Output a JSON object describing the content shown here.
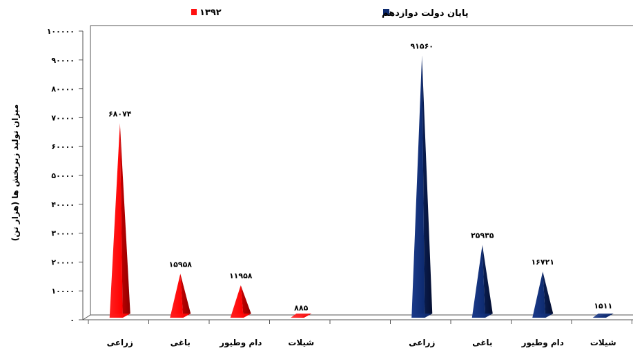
{
  "chart_data": {
    "type": "bar",
    "style": "cone",
    "ylabel": "میزان تولید زیربخش ها (هزار تن)",
    "ylim": [
      0,
      100000
    ],
    "y_ticks": [
      0,
      10000,
      20000,
      30000,
      40000,
      50000,
      60000,
      70000,
      80000,
      90000,
      100000
    ],
    "y_tick_labels": [
      "۰",
      "۱۰۰۰۰",
      "۲۰۰۰۰",
      "۳۰۰۰۰",
      "۴۰۰۰۰",
      "۵۰۰۰۰",
      "۶۰۰۰۰",
      "۷۰۰۰۰",
      "۸۰۰۰۰",
      "۹۰۰۰۰",
      "۱۰۰۰۰۰"
    ],
    "categories": [
      "زراعی",
      "باغی",
      "دام وطیور",
      "شیلات"
    ],
    "series": [
      {
        "name": "۱۳۹۲",
        "color": "#ff1010",
        "values": [
          68074,
          15958,
          11958,
          885
        ],
        "labels": [
          "۶۸۰۷۴",
          "۱۵۹۵۸",
          "۱۱۹۵۸",
          "۸۸۵"
        ]
      },
      {
        "name": "پایان دولت دوازدهم",
        "color": "#0d2a6e",
        "values": [
          91560,
          25935,
          16721,
          1511
        ],
        "labels": [
          "۹۱۵۶۰",
          "۲۵۹۳۵",
          "۱۶۷۲۱",
          "۱۵۱۱"
        ]
      }
    ],
    "legend_position": "top",
    "grid": false
  }
}
